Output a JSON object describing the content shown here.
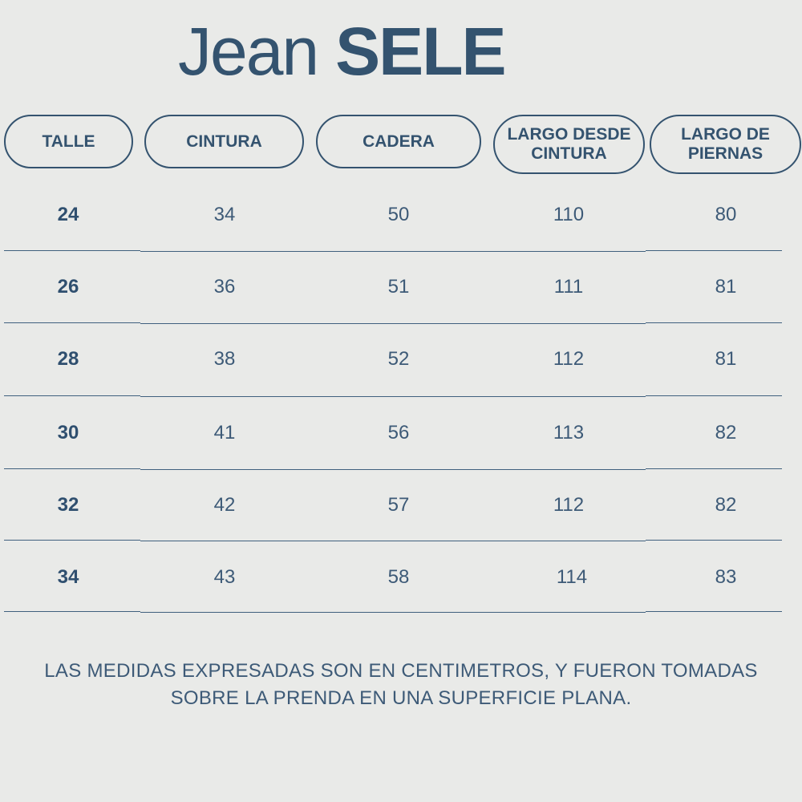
{
  "title": {
    "prefix": "Jean",
    "brand": "SELE"
  },
  "columns": [
    {
      "label": "TALLE"
    },
    {
      "label": "CINTURA"
    },
    {
      "label": "CADERA"
    },
    {
      "label": "LARGO DESDE\nCINTURA"
    },
    {
      "label": "LARGO DE\nPIERNAS"
    }
  ],
  "rows": [
    [
      "24",
      "34",
      "50",
      "110",
      "80"
    ],
    [
      "26",
      "36",
      "51",
      "111",
      "81"
    ],
    [
      "28",
      "38",
      "52",
      "112",
      "81"
    ],
    [
      "30",
      "41",
      "56",
      "113",
      "82"
    ],
    [
      "32",
      "42",
      "57",
      "112",
      "82"
    ],
    [
      "34",
      "43",
      "58",
      "114",
      "83"
    ]
  ],
  "note": "LAS MEDIDAS EXPRESADAS SON EN CENTIMETROS, Y FUERON TOMADAS\nSOBRE LA PRENDA EN UNA SUPERFICIE PLANA.",
  "colors": {
    "background": "#e9eae8",
    "ink": "#34536f"
  }
}
